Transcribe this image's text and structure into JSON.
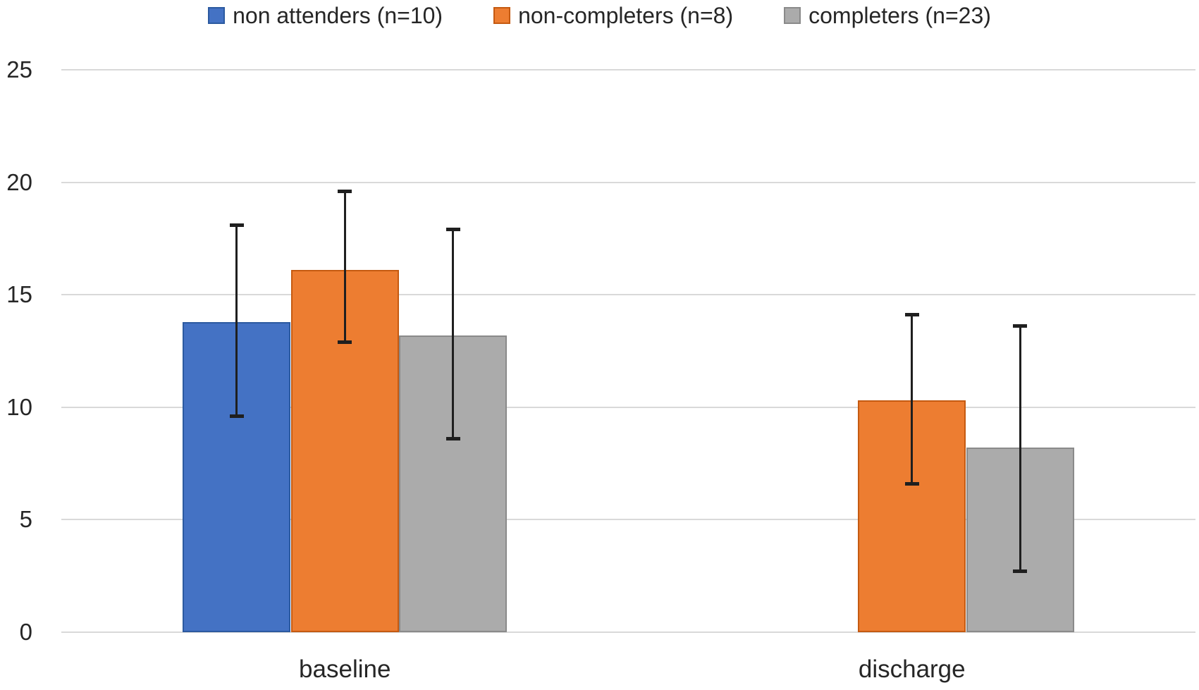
{
  "chart_data": {
    "type": "bar",
    "title": "",
    "categories": [
      "baseline",
      "discharge"
    ],
    "series": [
      {
        "name": "non attenders (n=10)",
        "color": "#4472C4",
        "edge_color": "#2C5AA0",
        "values": [
          13.8,
          null
        ],
        "error_low": [
          9.6,
          null
        ],
        "error_high": [
          18.1,
          null
        ]
      },
      {
        "name": "non-completers (n=8)",
        "color": "#ED7D31",
        "edge_color": "#C55A11",
        "values": [
          16.1,
          10.3
        ],
        "error_low": [
          12.9,
          6.6
        ],
        "error_high": [
          19.6,
          14.1
        ]
      },
      {
        "name": "completers (n=23)",
        "color": "#ABABAB",
        "edge_color": "#8A8A8A",
        "values": [
          13.2,
          8.2
        ],
        "error_low": [
          8.6,
          2.7
        ],
        "error_high": [
          17.9,
          13.6
        ]
      }
    ],
    "ylim": [
      0,
      25
    ],
    "yticks": [
      0,
      5,
      10,
      15,
      20,
      25
    ],
    "xlabel": "",
    "ylabel": "",
    "grid": true,
    "legend_position": "top",
    "error_bar_color": "#1F1F1F",
    "gridline_color": "#D9D9D9",
    "text_color": "#262626",
    "background": "#FFFFFF"
  }
}
